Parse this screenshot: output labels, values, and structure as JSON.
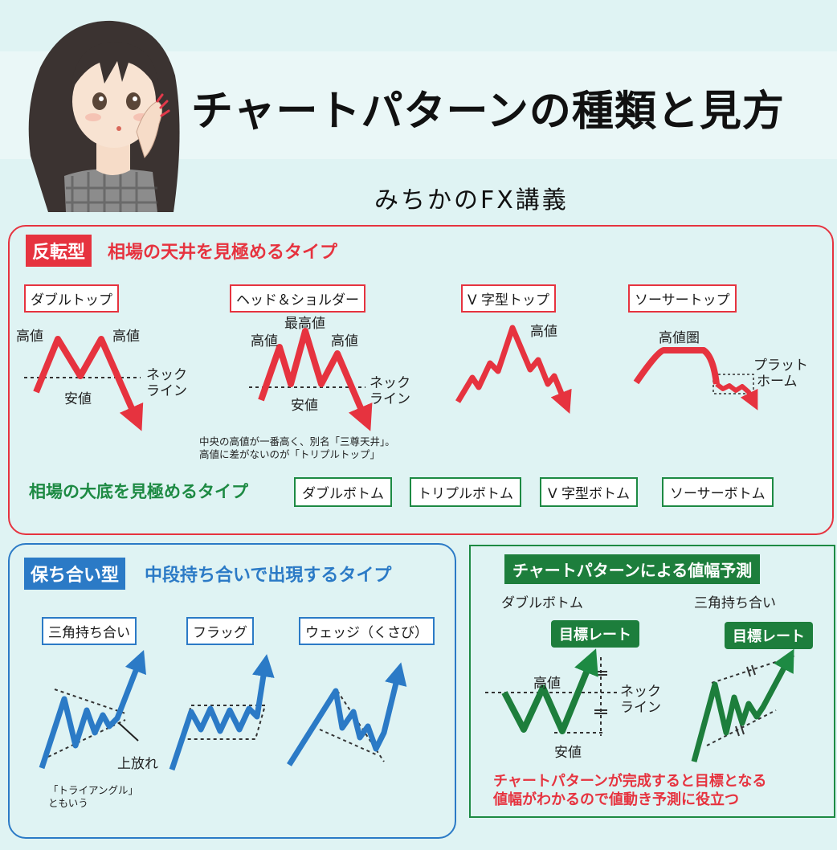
{
  "header": {
    "title": "チャートパターンの種類と見方",
    "subtitle": "みちかのFX講義"
  },
  "reversal": {
    "tag": "反転型",
    "heading": "相場の天井を見極めるタイプ",
    "patterns": {
      "double_top": "ダブルトップ",
      "head_shoulders": "ヘッド＆ショルダー",
      "v_top": "V 字型トップ",
      "saucer_top": "ソーサートップ"
    },
    "labels": {
      "high": "高値",
      "highest": "最高値",
      "low": "安値",
      "neck_line_1": "ネック",
      "neck_line_2": "ライン",
      "high_zone": "高値圏",
      "platform_1": "プラット",
      "platform_2": "ホーム"
    },
    "note_line1": "中央の高値が一番高く、別名「三尊天井」。",
    "note_line2": "高値に差がないのが「トリプルトップ」",
    "bottom_heading": "相場の大底を見極めるタイプ",
    "bottom_patterns": [
      "ダブルボトム",
      "トリプルボトム",
      "V 字型ボトム",
      "ソーサーボトム"
    ]
  },
  "continuation": {
    "tag": "保ち合い型",
    "heading": "中段持ち合いで出現するタイプ",
    "patterns": [
      "三角持ち合い",
      "フラッグ",
      "ウェッジ（くさび）"
    ],
    "breakout_label": "上放れ",
    "note_line1": "「トライアングル」",
    "note_line2": "ともいう"
  },
  "projection": {
    "tag": "チャートパターンによる値幅予測",
    "left_title": "ダブルボトム",
    "right_title": "三角持ち合い",
    "target_label": "目標レート",
    "high": "高値",
    "low": "安値",
    "neck_1": "ネック",
    "neck_2": "ライン",
    "note_line1": "チャートパターンが完成すると目標となる",
    "note_line2": "値幅がわかるので値動き予測に役立つ"
  },
  "colors": {
    "red": "#e6333f",
    "blue": "#2b7ac6",
    "green": "#1d8a43",
    "background": "#dff3f3"
  }
}
